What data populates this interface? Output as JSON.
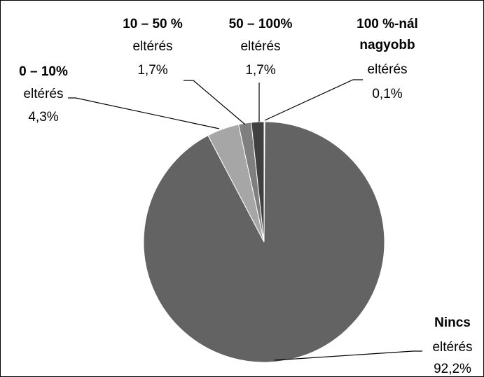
{
  "chart_data": {
    "type": "pie",
    "title": "",
    "start_angle_deg": 0,
    "direction": "clockwise",
    "slices": [
      {
        "label": "100 %-nál nagyobb eltérés",
        "label_bold": [
          "100 %-nál",
          "nagyobb"
        ],
        "label_text": "eltérés",
        "value": 0.1,
        "value_label": "0,1%",
        "color": "#808080"
      },
      {
        "label": "Nincs eltérés",
        "label_bold": [
          "Nincs"
        ],
        "label_text": "eltérés",
        "value": 92.2,
        "value_label": "92,2%",
        "color": "#636363"
      },
      {
        "label": "0 – 10% eltérés",
        "label_bold": [
          "0 – 10%"
        ],
        "label_text": "eltérés",
        "value": 4.3,
        "value_label": "4,3%",
        "color": "#a6a6a6"
      },
      {
        "label": "10 – 50 % eltérés",
        "label_bold": [
          "10 – 50 %"
        ],
        "label_text": "eltérés",
        "value": 1.7,
        "value_label": "1,7%",
        "color": "#7f7f7f"
      },
      {
        "label": "50 – 100% eltérés",
        "label_bold": [
          "50 – 100%"
        ],
        "label_text": "eltérés",
        "value": 1.7,
        "value_label": "1,7%",
        "color": "#404040"
      }
    ]
  }
}
